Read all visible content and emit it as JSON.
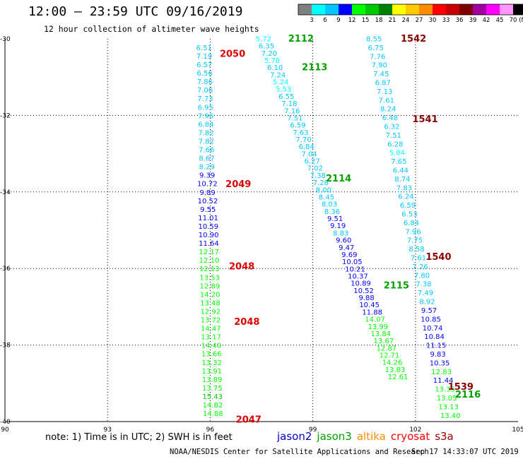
{
  "header": {
    "title": "12:00 – 23:59 UTC 09/16/2019",
    "subtitle": "12 hour collection of altimeter wave heights"
  },
  "colorbar": {
    "unit_label": "(ft)",
    "ticks": [
      "3",
      "6",
      "9",
      "12",
      "15",
      "18",
      "21",
      "24",
      "27",
      "30",
      "33",
      "36",
      "39",
      "42",
      "45",
      "70"
    ],
    "colors": [
      "#808080",
      "#00ffff",
      "#00c8ff",
      "#0000ff",
      "#00ff00",
      "#00c800",
      "#008000",
      "#ffff00",
      "#ffc800",
      "#ff8c00",
      "#ff0000",
      "#c80000",
      "#800000",
      "#a000a0",
      "#ff00ff",
      "#ff96ff",
      "#000000"
    ]
  },
  "footer": {
    "note": "note:  1) Time is in UTC;  2) SWH is in feet",
    "credit": "NOAA/NESDIS Center for Satellite Applications and Research",
    "timestamp": "Sep 17 14:33:07 UTC 2019",
    "satellites": [
      {
        "name": "jason2",
        "color": "#0000c8"
      },
      {
        "name": "jason3",
        "color": "#00a000"
      },
      {
        "name": "altika",
        "color": "#ff8c00"
      },
      {
        "name": "cryosat",
        "color": "#ff0000"
      },
      {
        "name": "s3a",
        "color": "#a00000"
      }
    ]
  },
  "chart_data": {
    "type": "scatter",
    "title": "12:00 – 23:59 UTC 09/16/2019",
    "xlim": [
      90,
      105
    ],
    "ylim": [
      -40,
      -30
    ],
    "x_ticks": [
      "90",
      "93",
      "96",
      "99",
      "102",
      "105"
    ],
    "y_ticks": [
      "-30",
      "-32",
      "-34",
      "-36",
      "-38",
      "-40"
    ],
    "grid": true,
    "tracks": [
      {
        "start": [
          95.82,
          -30.22
        ],
        "end": [
          96.08,
          -39.78
        ],
        "values": [
          6.51,
          7.19,
          6.57,
          6.56,
          7.86,
          7.06,
          7.73,
          6.95,
          7.96,
          6.84,
          7.82,
          7.82,
          7.66,
          8.67,
          8.29,
          9.39,
          10.72,
          9.89,
          10.52,
          9.55,
          11.01,
          10.59,
          10.9,
          11.64,
          12.17,
          12.1,
          12.13,
          13.53,
          12.89,
          14.2,
          13.48,
          12.92,
          13.72,
          14.47,
          13.17,
          14.4,
          13.66,
          13.32,
          13.91,
          13.89,
          13.75,
          15.43,
          14.82,
          14.88
        ]
      },
      {
        "start": [
          97.56,
          -29.99
        ],
        "end": [
          101.49,
          -38.82
        ],
        "values": [
          5.72,
          6.35,
          7.2,
          5.78,
          6.1,
          7.24,
          5.24,
          5.53,
          6.55,
          7.18,
          7.16,
          7.51,
          6.59,
          7.63,
          7.7,
          6.84,
          7.04,
          6.27,
          7.02,
          7.38,
          7.28,
          8.0,
          8.45,
          8.03,
          8.36,
          9.51,
          9.19,
          8.83,
          9.6,
          9.47,
          9.69,
          10.05,
          10.21,
          10.37,
          10.89,
          10.52,
          9.88,
          10.45,
          11.88,
          14.07,
          13.99,
          13.84,
          13.67,
          12.87,
          12.71,
          14.26,
          13.83,
          12.61
        ]
      },
      {
        "start": [
          100.79,
          -29.99
        ],
        "end": [
          103.02,
          -39.83
        ],
        "values": [
          8.55,
          6.75,
          7.76,
          7.9,
          7.45,
          6.87,
          7.13,
          7.61,
          8.24,
          6.48,
          6.32,
          7.51,
          6.28,
          5.84,
          7.65,
          6.44,
          8.74,
          7.83,
          6.24,
          6.59,
          6.53,
          6.84,
          7.96,
          7.75,
          8.58,
          7.61,
          7.26,
          7.8,
          7.38,
          7.49,
          8.92,
          9.57,
          10.85,
          10.74,
          10.84,
          11.15,
          9.83,
          10.35,
          12.83,
          11.44,
          13.35,
          13.05,
          13.13,
          13.4
        ]
      }
    ],
    "track_labels": [
      {
        "text": "2050",
        "x": 96.28,
        "y": -30.4,
        "color": "#dd0000"
      },
      {
        "text": "2049",
        "x": 96.45,
        "y": -33.8,
        "color": "#dd0000"
      },
      {
        "text": "2048",
        "x": 96.55,
        "y": -35.95,
        "color": "#dd0000"
      },
      {
        "text": "2048",
        "x": 96.7,
        "y": -37.4,
        "color": "#dd0000"
      },
      {
        "text": "2047",
        "x": 96.75,
        "y": -39.95,
        "color": "#dd0000"
      },
      {
        "text": "2112",
        "x": 98.28,
        "y": -30.0,
        "color": "#00a000"
      },
      {
        "text": "2113",
        "x": 98.68,
        "y": -30.75,
        "color": "#00a000"
      },
      {
        "text": "2114",
        "x": 99.38,
        "y": -33.65,
        "color": "#00a000"
      },
      {
        "text": "2115",
        "x": 101.07,
        "y": -36.45,
        "color": "#00a000"
      },
      {
        "text": "2116",
        "x": 103.16,
        "y": -39.3,
        "color": "#00a000"
      },
      {
        "text": "1542",
        "x": 101.57,
        "y": -30.0,
        "color": "#8b0000"
      },
      {
        "text": "1541",
        "x": 101.91,
        "y": -32.1,
        "color": "#8b0000"
      },
      {
        "text": "1540",
        "x": 102.3,
        "y": -35.7,
        "color": "#8b0000"
      },
      {
        "text": "1539",
        "x": 102.95,
        "y": -39.1,
        "color": "#8b0000"
      }
    ]
  }
}
